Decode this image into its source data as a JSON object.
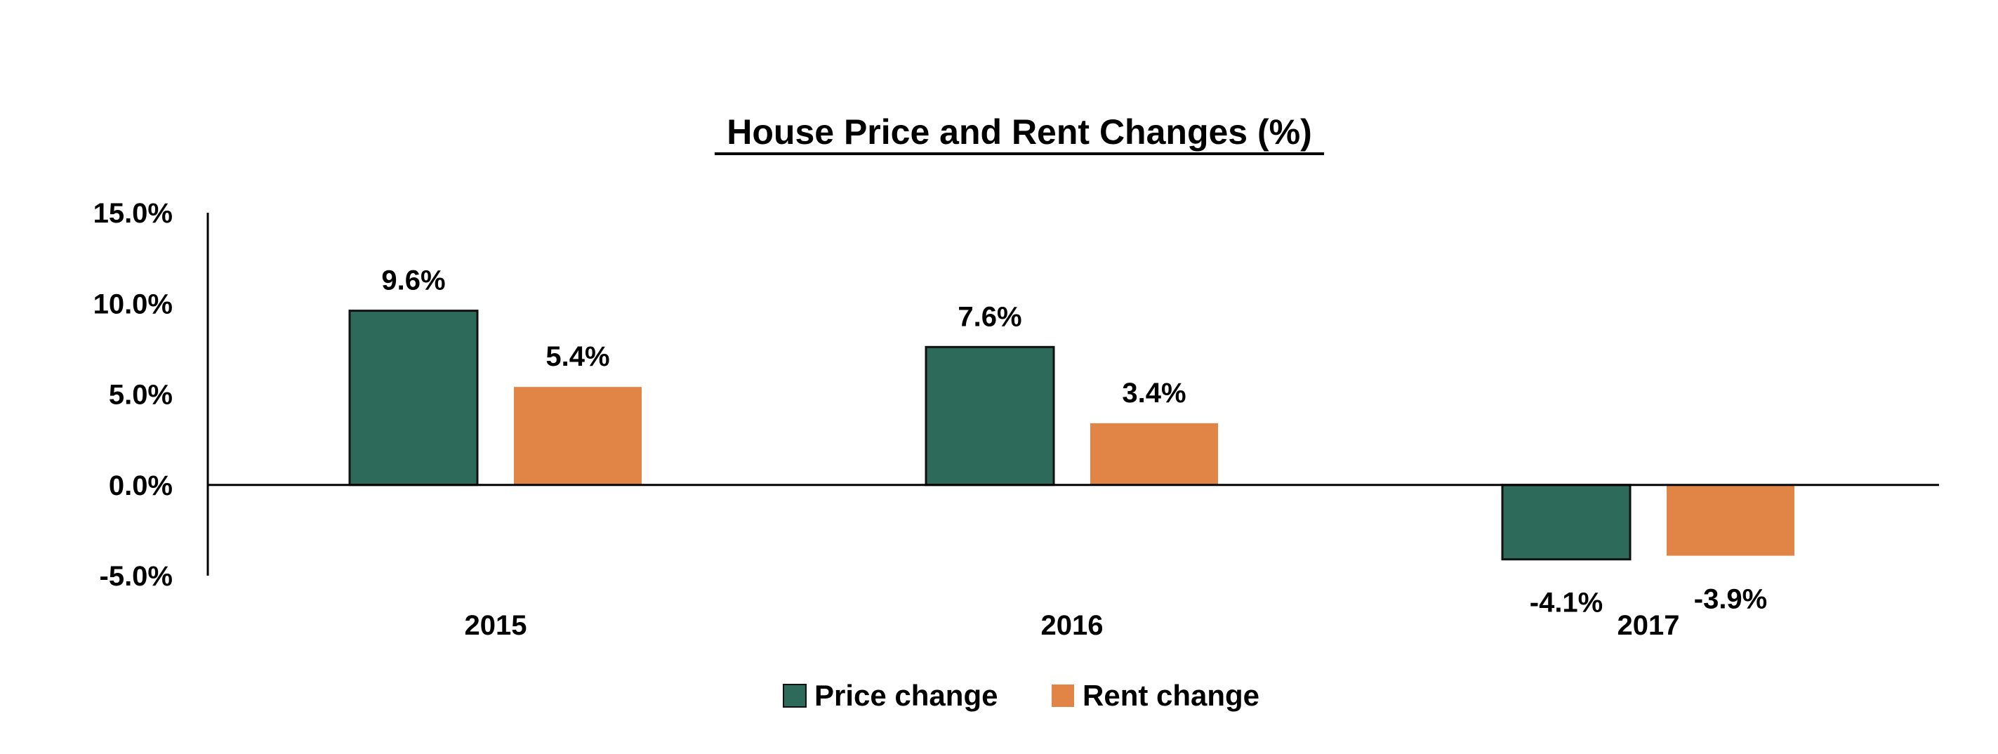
{
  "chart_data": {
    "type": "bar",
    "title": "House Price and Rent Changes (%)",
    "xlabel": "",
    "ylabel": "",
    "categories": [
      "2015",
      "2016",
      "2017"
    ],
    "series": [
      {
        "name": "Price change",
        "values": [
          9.6,
          7.6,
          -4.1
        ],
        "labels": [
          "9.6%",
          "7.6%",
          "-4.1%"
        ],
        "color": "#2d6a5a"
      },
      {
        "name": "Rent change",
        "values": [
          5.4,
          3.4,
          -3.9
        ],
        "labels": [
          "5.4%",
          "3.4%",
          "-3.9%"
        ],
        "color": "#e08545"
      }
    ],
    "ylim": [
      -5,
      15
    ],
    "yticks": [
      -5,
      0,
      5,
      10,
      15
    ],
    "ytick_labels": [
      "-5.0%",
      "0.0%",
      "5.0%",
      "10.0%",
      "15.0%"
    ],
    "grid": false,
    "legend_position": "bottom-center"
  }
}
